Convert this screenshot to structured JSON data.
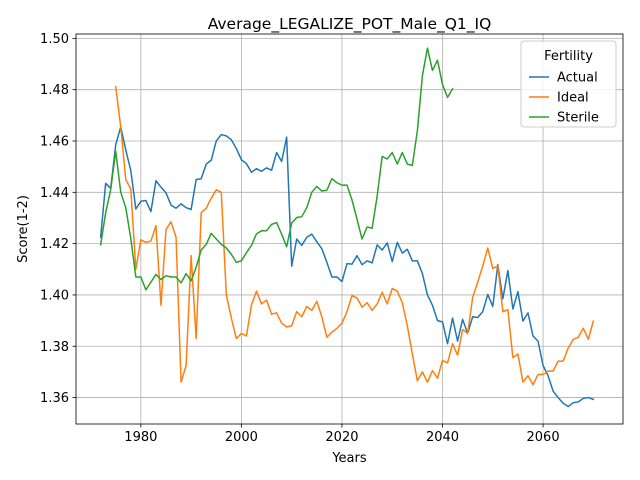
{
  "chart_data": {
    "type": "line",
    "title": "Average_LEGALIZE_POT_Male_Q1_IQ",
    "xlabel": "Years",
    "ylabel": "Score(1-2)",
    "xlim": [
      1967.1,
      2075.9
    ],
    "ylim": [
      1.3497,
      1.5017
    ],
    "x_ticks": [
      1980,
      2000,
      2020,
      2040,
      2060
    ],
    "y_ticks": [
      1.36,
      1.38,
      1.4,
      1.42,
      1.44,
      1.46,
      1.48,
      1.5
    ],
    "x_tick_labels": [
      "1980",
      "2000",
      "2020",
      "2040",
      "2060"
    ],
    "y_tick_labels": [
      "1.36",
      "1.38",
      "1.40",
      "1.42",
      "1.44",
      "1.46",
      "1.48",
      "1.50"
    ],
    "grid": true,
    "legend": {
      "title": "Fertility",
      "position": "top-right"
    },
    "series": [
      {
        "name": "Actual",
        "color": "#1f77b4",
        "x": [
          1972,
          1973,
          1974,
          1975,
          1976,
          1977,
          1978,
          1979,
          1980,
          1981,
          1982,
          1983,
          1984,
          1985,
          1986,
          1987,
          1988,
          1989,
          1990,
          1991,
          1992,
          1993,
          1994,
          1995,
          1996,
          1997,
          1998,
          1999,
          2000,
          2001,
          2002,
          2003,
          2004,
          2005,
          2006,
          2007,
          2008,
          2009,
          2010,
          2011,
          2012,
          2013,
          2014,
          2015,
          2016,
          2017,
          2018,
          2019,
          2020,
          2021,
          2022,
          2023,
          2024,
          2025,
          2026,
          2027,
          2028,
          2029,
          2030,
          2031,
          2032,
          2033,
          2034,
          2035,
          2036,
          2037,
          2038,
          2039,
          2040,
          2041,
          2042,
          2043,
          2044,
          2045,
          2046,
          2047,
          2048,
          2049,
          2050,
          2051,
          2052,
          2053,
          2054,
          2055,
          2056,
          2057,
          2058,
          2059,
          2060,
          2061,
          2062,
          2063,
          2064,
          2065,
          2066,
          2067,
          2068,
          2069,
          2070
        ],
        "values": [
          1.4225,
          1.4435,
          1.4415,
          1.4585,
          1.4655,
          1.4565,
          1.4485,
          1.4335,
          1.4365,
          1.4368,
          1.4325,
          1.4445,
          1.442,
          1.4398,
          1.435,
          1.4338,
          1.4355,
          1.434,
          1.4333,
          1.445,
          1.4453,
          1.451,
          1.4525,
          1.46,
          1.4625,
          1.462,
          1.4605,
          1.457,
          1.4527,
          1.4512,
          1.4478,
          1.4492,
          1.4482,
          1.4495,
          1.4486,
          1.4555,
          1.452,
          1.4615,
          1.4112,
          1.4218,
          1.4193,
          1.4225,
          1.4237,
          1.4207,
          1.418,
          1.4127,
          1.407,
          1.407,
          1.4052,
          1.4122,
          1.412,
          1.4153,
          1.4118,
          1.4133,
          1.4125,
          1.4195,
          1.4175,
          1.4203,
          1.413,
          1.4205,
          1.4163,
          1.4178,
          1.4133,
          1.4133,
          1.4083,
          1.4,
          1.396,
          1.39,
          1.3895,
          1.381,
          1.391,
          1.382,
          1.3905,
          1.385,
          1.3915,
          1.3912,
          1.3935,
          1.4002,
          1.3955,
          1.4118,
          1.3985,
          1.4095,
          1.3945,
          1.4013,
          1.3898,
          1.393,
          1.384,
          1.382,
          1.3725,
          1.3685,
          1.3625,
          1.36,
          1.3578,
          1.3565,
          1.358,
          1.3583,
          1.3597,
          1.36,
          1.3593
        ]
      },
      {
        "name": "Ideal",
        "color": "#ff7f0e",
        "x": [
          1975,
          1976,
          1977,
          1978,
          1979,
          1980,
          1981,
          1982,
          1983,
          1984,
          1985,
          1986,
          1987,
          1988,
          1989,
          1990,
          1991,
          1992,
          1993,
          1994,
          1995,
          1996,
          1997,
          1998,
          1999,
          2000,
          2001,
          2002,
          2003,
          2004,
          2005,
          2006,
          2007,
          2008,
          2009,
          2010,
          2011,
          2012,
          2013,
          2014,
          2015,
          2016,
          2017,
          2018,
          2019,
          2020,
          2021,
          2022,
          2023,
          2024,
          2025,
          2026,
          2027,
          2028,
          2029,
          2030,
          2031,
          2032,
          2033,
          2034,
          2035,
          2036,
          2037,
          2038,
          2039,
          2040,
          2041,
          2042,
          2043,
          2044,
          2045,
          2046,
          2047,
          2048,
          2049,
          2050,
          2051,
          2052,
          2053,
          2054,
          2055,
          2056,
          2057,
          2058,
          2059,
          2060,
          2061,
          2062,
          2063,
          2064,
          2065,
          2066,
          2067,
          2068,
          2069,
          2070
        ],
        "values": [
          1.4812,
          1.4655,
          1.445,
          1.4413,
          1.41,
          1.4215,
          1.4205,
          1.421,
          1.427,
          1.396,
          1.4255,
          1.4285,
          1.4225,
          1.366,
          1.3725,
          1.4153,
          1.383,
          1.432,
          1.4338,
          1.4377,
          1.441,
          1.44,
          1.4,
          1.391,
          1.383,
          1.385,
          1.384,
          1.396,
          1.4015,
          1.3965,
          1.398,
          1.3925,
          1.393,
          1.389,
          1.3875,
          1.388,
          1.3935,
          1.3915,
          1.3955,
          1.394,
          1.3975,
          1.3915,
          1.3835,
          1.3855,
          1.387,
          1.389,
          1.3935,
          1.3998,
          1.3988,
          1.3952,
          1.397,
          1.394,
          1.3965,
          1.401,
          1.3965,
          1.4025,
          1.4015,
          1.397,
          1.388,
          1.377,
          1.3665,
          1.37,
          1.366,
          1.3705,
          1.3675,
          1.3745,
          1.3735,
          1.381,
          1.3765,
          1.3865,
          1.385,
          1.399,
          1.405,
          1.4113,
          1.4183,
          1.4103,
          1.4113,
          1.3935,
          1.3942,
          1.3755,
          1.377,
          1.366,
          1.3685,
          1.365,
          1.369,
          1.369,
          1.3703,
          1.3703,
          1.3742,
          1.3742,
          1.3793,
          1.3827,
          1.3835,
          1.387,
          1.3827,
          1.3898
        ]
      },
      {
        "name": "Sterile",
        "color": "#2ca02c",
        "x": [
          1972,
          1973,
          1974,
          1975,
          1976,
          1977,
          1978,
          1979,
          1980,
          1981,
          1982,
          1983,
          1984,
          1985,
          1986,
          1987,
          1988,
          1989,
          1990,
          1991,
          1992,
          1993,
          1994,
          1995,
          1996,
          1997,
          1998,
          1999,
          2000,
          2001,
          2002,
          2003,
          2004,
          2005,
          2006,
          2007,
          2008,
          2009,
          2010,
          2011,
          2012,
          2013,
          2014,
          2015,
          2016,
          2017,
          2018,
          2019,
          2020,
          2021,
          2022,
          2023,
          2024,
          2025,
          2026,
          2027,
          2028,
          2029,
          2030,
          2031,
          2032,
          2033,
          2034,
          2035,
          2036,
          2037,
          2038,
          2039,
          2040,
          2041,
          2042
        ],
        "values": [
          1.4195,
          1.432,
          1.441,
          1.456,
          1.44,
          1.434,
          1.422,
          1.407,
          1.407,
          1.402,
          1.405,
          1.408,
          1.406,
          1.4075,
          1.407,
          1.407,
          1.4047,
          1.4083,
          1.4055,
          1.4108,
          1.4175,
          1.4197,
          1.424,
          1.4218,
          1.4197,
          1.4183,
          1.4158,
          1.4127,
          1.4133,
          1.4165,
          1.4193,
          1.4238,
          1.425,
          1.425,
          1.4275,
          1.4282,
          1.4237,
          1.4188,
          1.428,
          1.4302,
          1.4305,
          1.434,
          1.44,
          1.4423,
          1.4405,
          1.4408,
          1.4453,
          1.4437,
          1.4428,
          1.4428,
          1.437,
          1.4295,
          1.4218,
          1.4265,
          1.426,
          1.4385,
          1.454,
          1.453,
          1.4555,
          1.451,
          1.4555,
          1.451,
          1.4505,
          1.464,
          1.4855,
          1.4962,
          1.4875,
          1.4915,
          1.482,
          1.477,
          1.4803
        ]
      }
    ]
  }
}
